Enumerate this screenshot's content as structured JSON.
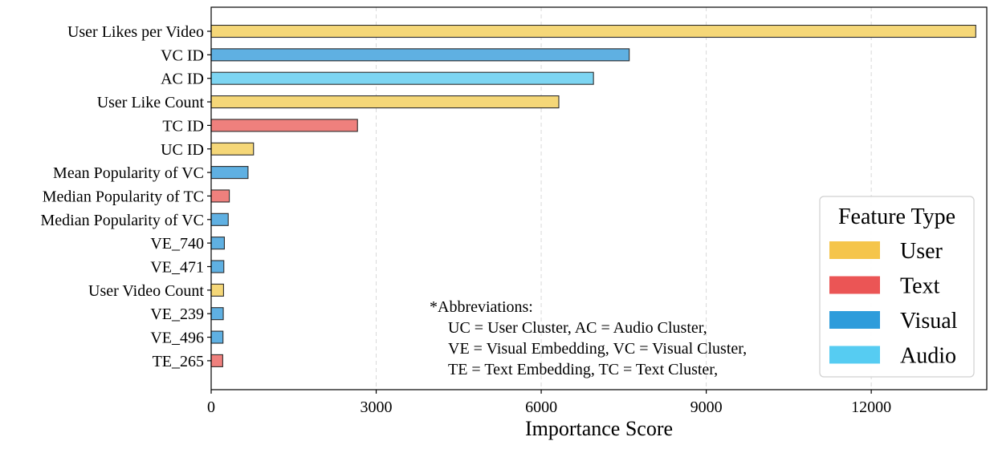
{
  "chart_data": {
    "type": "bar",
    "orientation": "horizontal",
    "categories": [
      "User Likes per Video",
      "VC ID",
      "AC ID",
      "User Like Count",
      "TC ID",
      "UC ID",
      "Mean Popularity of VC",
      "Median Popularity of TC",
      "Median Popularity of VC",
      "VE_740",
      "VE_471",
      "User Video Count",
      "VE_239",
      "VE_496",
      "TE_265"
    ],
    "values": [
      13900,
      7600,
      6950,
      6320,
      2660,
      770,
      670,
      330,
      310,
      240,
      230,
      225,
      220,
      215,
      210
    ],
    "feature_types": [
      "User",
      "Visual",
      "Audio",
      "User",
      "Text",
      "User",
      "Visual",
      "Text",
      "Visual",
      "Visual",
      "Visual",
      "User",
      "Visual",
      "Visual",
      "Text"
    ],
    "xlabel": "Importance Score",
    "ylabel": "",
    "xlim": [
      0,
      14100
    ],
    "xticks": [
      0,
      3000,
      6000,
      9000,
      12000
    ],
    "xtick_labels": [
      "0",
      "3000",
      "6000",
      "9000",
      "12000"
    ],
    "grid": "x-dashed",
    "legend": {
      "title": "Feature Type",
      "position": "bottom-right",
      "items": [
        {
          "label": "User",
          "color": "#f5c54b"
        },
        {
          "label": "Text",
          "color": "#eb5555"
        },
        {
          "label": "Visual",
          "color": "#2e9cdb"
        },
        {
          "label": "Audio",
          "color": "#56ccf2"
        }
      ]
    },
    "annotation": [
      "*Abbreviations:",
      "UC = User Cluster, AC = Audio Cluster,",
      "VE = Visual Embedding, VC = Visual Cluster,",
      "TE = Text Embedding, TC = Text Cluster,"
    ]
  },
  "colors": {
    "User": "#f5d778",
    "Text": "#ef807d",
    "Visual": "#5fb0e2",
    "Audio": "#7dd5f2",
    "edge": "#2b2b2b"
  }
}
